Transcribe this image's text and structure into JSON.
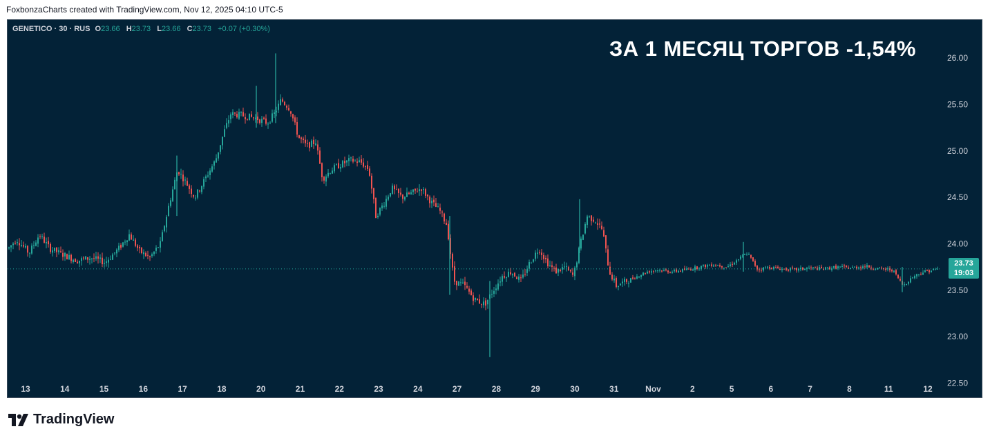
{
  "caption": "FoxbonzaCharts created with TradingView.com, Nov 12, 2025 04:10 UTC-5",
  "legend": {
    "symbol": "GENETICO · 30 · RUS",
    "open_label": "O",
    "open": "23.66",
    "high_label": "H",
    "high": "23.73",
    "low_label": "L",
    "low": "23.66",
    "close_label": "C",
    "close": "23.73",
    "change": "+0.07 (+0.30%)"
  },
  "overlay_text": "ЗА 1 МЕСЯЦ ТОРГОВ -1,54%",
  "last_price": {
    "price": "23.73",
    "countdown": "19:03"
  },
  "brand": {
    "name": "TradingView",
    "logo_icon": "tradingview-logo-icon"
  },
  "colors": {
    "background": "#032237",
    "up": "#26a69a",
    "down": "#ef5350",
    "price_line": "#26a69a"
  },
  "chart_data": {
    "type": "candlestick",
    "y_ticks": [
      "26.00",
      "25.50",
      "25.00",
      "24.50",
      "24.00",
      "23.50",
      "23.00",
      "22.50"
    ],
    "ylim": [
      22.4,
      26.35
    ],
    "x_ticks": [
      "13",
      "14",
      "15",
      "16",
      "17",
      "18",
      "20",
      "21",
      "22",
      "23",
      "24",
      "27",
      "28",
      "29",
      "30",
      "31",
      "Nov",
      "2",
      "5",
      "6",
      "7",
      "8",
      "11",
      "12"
    ],
    "current_price": 23.73,
    "path": [
      [
        0,
        23.95
      ],
      [
        12,
        24.05
      ],
      [
        30,
        23.9
      ],
      [
        45,
        24.1
      ],
      [
        60,
        23.95
      ],
      [
        80,
        23.88
      ],
      [
        100,
        23.82
      ],
      [
        120,
        23.85
      ],
      [
        140,
        23.8
      ],
      [
        160,
        23.95
      ],
      [
        175,
        24.1
      ],
      [
        190,
        23.92
      ],
      [
        205,
        23.85
      ],
      [
        220,
        24.0
      ],
      [
        232,
        24.4
      ],
      [
        245,
        24.8
      ],
      [
        258,
        24.65
      ],
      [
        270,
        24.5
      ],
      [
        285,
        24.7
      ],
      [
        300,
        24.9
      ],
      [
        312,
        25.2
      ],
      [
        322,
        25.4
      ],
      [
        340,
        25.38
      ],
      [
        360,
        25.35
      ],
      [
        375,
        25.3
      ],
      [
        385,
        25.4
      ],
      [
        395,
        25.55
      ],
      [
        408,
        25.45
      ],
      [
        420,
        25.15
      ],
      [
        432,
        25.05
      ],
      [
        445,
        25.1
      ],
      [
        455,
        24.7
      ],
      [
        468,
        24.8
      ],
      [
        480,
        24.85
      ],
      [
        495,
        24.9
      ],
      [
        510,
        24.88
      ],
      [
        522,
        24.8
      ],
      [
        532,
        24.3
      ],
      [
        545,
        24.45
      ],
      [
        555,
        24.6
      ],
      [
        570,
        24.5
      ],
      [
        585,
        24.55
      ],
      [
        598,
        24.6
      ],
      [
        612,
        24.45
      ],
      [
        625,
        24.35
      ],
      [
        635,
        24.2
      ],
      [
        645,
        23.6
      ],
      [
        660,
        23.55
      ],
      [
        675,
        23.4
      ],
      [
        690,
        23.35
      ],
      [
        702,
        23.5
      ],
      [
        715,
        23.65
      ],
      [
        728,
        23.7
      ],
      [
        742,
        23.6
      ],
      [
        755,
        23.8
      ],
      [
        768,
        23.95
      ],
      [
        780,
        23.8
      ],
      [
        792,
        23.7
      ],
      [
        805,
        23.75
      ],
      [
        818,
        23.65
      ],
      [
        828,
        24.0
      ],
      [
        838,
        24.3
      ],
      [
        850,
        24.25
      ],
      [
        860,
        24.15
      ],
      [
        870,
        23.7
      ],
      [
        880,
        23.55
      ],
      [
        895,
        23.6
      ],
      [
        910,
        23.65
      ],
      [
        925,
        23.7
      ],
      [
        940,
        23.72
      ],
      [
        960,
        23.7
      ],
      [
        980,
        23.72
      ],
      [
        1000,
        23.75
      ],
      [
        1020,
        23.78
      ],
      [
        1040,
        23.75
      ],
      [
        1060,
        23.85
      ],
      [
        1070,
        23.9
      ],
      [
        1085,
        23.72
      ],
      [
        1100,
        23.75
      ],
      [
        1120,
        23.73
      ],
      [
        1140,
        23.72
      ],
      [
        1160,
        23.74
      ],
      [
        1180,
        23.73
      ],
      [
        1200,
        23.75
      ],
      [
        1220,
        23.74
      ],
      [
        1240,
        23.76
      ],
      [
        1260,
        23.73
      ],
      [
        1280,
        23.72
      ],
      [
        1295,
        23.55
      ],
      [
        1310,
        23.65
      ],
      [
        1325,
        23.7
      ],
      [
        1340,
        23.72
      ],
      [
        1350,
        23.73
      ]
    ],
    "spikes": [
      {
        "x": 388,
        "high": 26.05,
        "low": 25.3
      },
      {
        "x": 698,
        "high": 23.6,
        "low": 22.78
      },
      {
        "x": 828,
        "high": 24.48,
        "low": 23.9
      },
      {
        "x": 640,
        "high": 24.3,
        "low": 23.45
      },
      {
        "x": 245,
        "high": 24.95,
        "low": 24.3
      },
      {
        "x": 360,
        "high": 25.7,
        "low": 25.25
      },
      {
        "x": 1065,
        "high": 24.02,
        "low": 23.7
      },
      {
        "x": 1295,
        "high": 23.75,
        "low": 23.48
      }
    ]
  }
}
